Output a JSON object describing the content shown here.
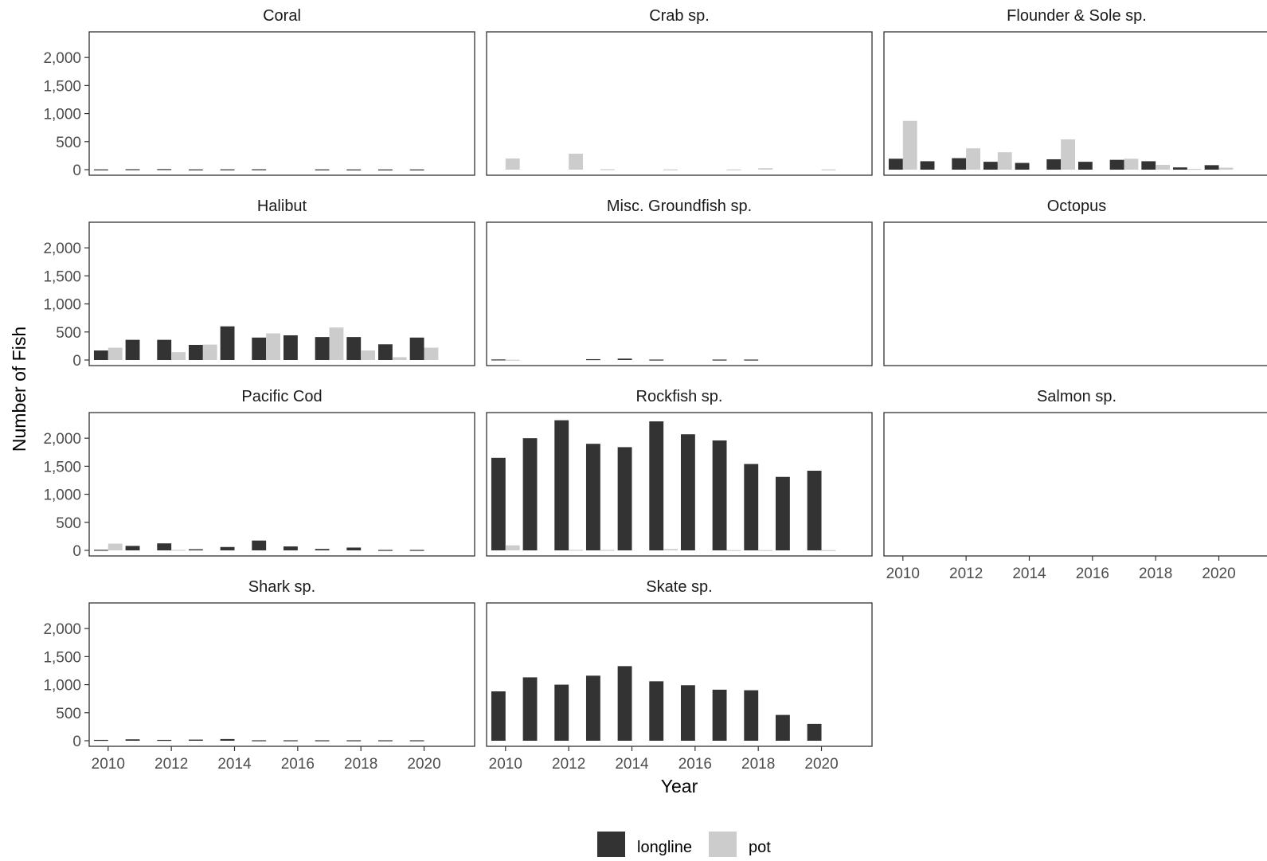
{
  "chart_data": {
    "type": "bar",
    "layout": "facet-grid-3-columns",
    "xlabel": "Year",
    "ylabel": "Number of Fish",
    "ylim": [
      0,
      2400
    ],
    "yticks": [
      0,
      500,
      1000,
      1500,
      2000
    ],
    "ytick_labels": [
      "0",
      "500",
      "1,000",
      "1,500",
      "2,000"
    ],
    "xlim": [
      2009.4,
      2021.6
    ],
    "xticks": [
      2010,
      2012,
      2014,
      2016,
      2018,
      2020
    ],
    "xtick_labels": [
      "2010",
      "2012",
      "2014",
      "2016",
      "2018",
      "2020"
    ],
    "grid": false,
    "legend_position": "bottom",
    "legend": [
      {
        "key": "longline",
        "label": "longline",
        "color": "#333333"
      },
      {
        "key": "pot",
        "label": "pot",
        "color": "#cccccc"
      }
    ],
    "years": [
      2010,
      2011,
      2012,
      2013,
      2014,
      2015,
      2016,
      2017,
      2018,
      2019,
      2020
    ],
    "facets": [
      {
        "title": "Coral",
        "longline": [
          5,
          8,
          10,
          5,
          6,
          7,
          0,
          5,
          4,
          4,
          4
        ],
        "pot": [
          0,
          0,
          0,
          0,
          0,
          0,
          0,
          0,
          0,
          0,
          0
        ]
      },
      {
        "title": "Crab sp.",
        "longline": [
          0,
          0,
          0,
          0,
          0,
          0,
          0,
          0,
          0,
          0,
          0
        ],
        "pot": [
          200,
          0,
          285,
          8,
          0,
          5,
          0,
          5,
          25,
          0,
          5
        ]
      },
      {
        "title": "Flounder & Sole sp.",
        "longline": [
          195,
          150,
          205,
          140,
          120,
          185,
          140,
          175,
          150,
          40,
          80
        ],
        "pot": [
          870,
          0,
          380,
          310,
          0,
          540,
          0,
          195,
          85,
          15,
          35
        ]
      },
      {
        "title": "Halibut",
        "longline": [
          170,
          360,
          360,
          270,
          600,
          400,
          440,
          410,
          410,
          280,
          400
        ],
        "pot": [
          220,
          0,
          140,
          275,
          0,
          475,
          0,
          580,
          170,
          50,
          220
        ]
      },
      {
        "title": "Misc. Groundfish sp.",
        "longline": [
          10,
          0,
          0,
          15,
          25,
          8,
          0,
          8,
          8,
          0,
          0
        ],
        "pot": [
          5,
          0,
          0,
          0,
          0,
          0,
          0,
          0,
          0,
          0,
          0
        ]
      },
      {
        "title": "Octopus",
        "longline": [
          0,
          0,
          0,
          0,
          0,
          0,
          0,
          0,
          0,
          0,
          0
        ],
        "pot": [
          0,
          0,
          0,
          0,
          0,
          0,
          0,
          0,
          0,
          0,
          0
        ]
      },
      {
        "title": "Pacific Cod",
        "longline": [
          10,
          80,
          125,
          20,
          60,
          175,
          70,
          25,
          50,
          8,
          8
        ],
        "pot": [
          120,
          0,
          10,
          0,
          0,
          0,
          0,
          0,
          0,
          0,
          0
        ]
      },
      {
        "title": "Rockfish sp.",
        "longline": [
          1650,
          2000,
          2320,
          1900,
          1840,
          2300,
          2070,
          1960,
          1540,
          1310,
          1420
        ],
        "pot": [
          90,
          0,
          10,
          8,
          0,
          25,
          0,
          5,
          5,
          0,
          5
        ]
      },
      {
        "title": "Salmon sp.",
        "longline": [
          0,
          0,
          0,
          0,
          0,
          0,
          0,
          0,
          0,
          0,
          0
        ],
        "pot": [
          0,
          0,
          0,
          0,
          0,
          0,
          0,
          0,
          0,
          0,
          0
        ]
      },
      {
        "title": "Shark sp.",
        "longline": [
          15,
          25,
          15,
          20,
          30,
          8,
          8,
          8,
          8,
          8,
          8
        ],
        "pot": [
          0,
          0,
          0,
          0,
          0,
          0,
          0,
          0,
          0,
          0,
          0
        ]
      },
      {
        "title": "Skate sp.",
        "longline": [
          880,
          1130,
          1000,
          1160,
          1330,
          1060,
          990,
          910,
          900,
          460,
          300
        ],
        "pot": [
          0,
          0,
          0,
          0,
          0,
          0,
          0,
          0,
          0,
          0,
          0
        ]
      }
    ]
  }
}
